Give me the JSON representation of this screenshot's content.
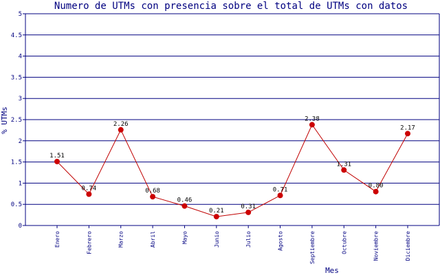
{
  "chart_data": {
    "type": "line",
    "title": "Numero de UTMs con presencia sobre el total de UTMs con datos",
    "xlabel": "Mes",
    "ylabel": "% UTMs",
    "categories": [
      "Enero",
      "Febrero",
      "Marzo",
      "Abril",
      "Mayo",
      "Junio",
      "Julio",
      "Agosto",
      "Septiembre",
      "Octubre",
      "Noviembre",
      "Diciembre"
    ],
    "values": [
      1.51,
      0.74,
      2.26,
      0.68,
      0.46,
      0.21,
      0.31,
      0.71,
      2.38,
      1.31,
      0.8,
      2.17
    ],
    "data_labels": [
      "1.51",
      "0.74",
      "2.26",
      "0.68",
      "0.46",
      "0.21",
      "0.31",
      "0.71",
      "2.38",
      "1.31",
      "0.80",
      "2.17"
    ],
    "ylim": [
      0,
      5
    ],
    "yticks": [
      "0",
      "0.5",
      "1",
      "1.5",
      "2",
      "2.5",
      "3",
      "3.5",
      "4",
      "4.5",
      "5"
    ],
    "grid": true,
    "colors": {
      "line": "#c00000",
      "marker": "#cc0000",
      "grid": "#000080",
      "text": "#000080"
    }
  }
}
